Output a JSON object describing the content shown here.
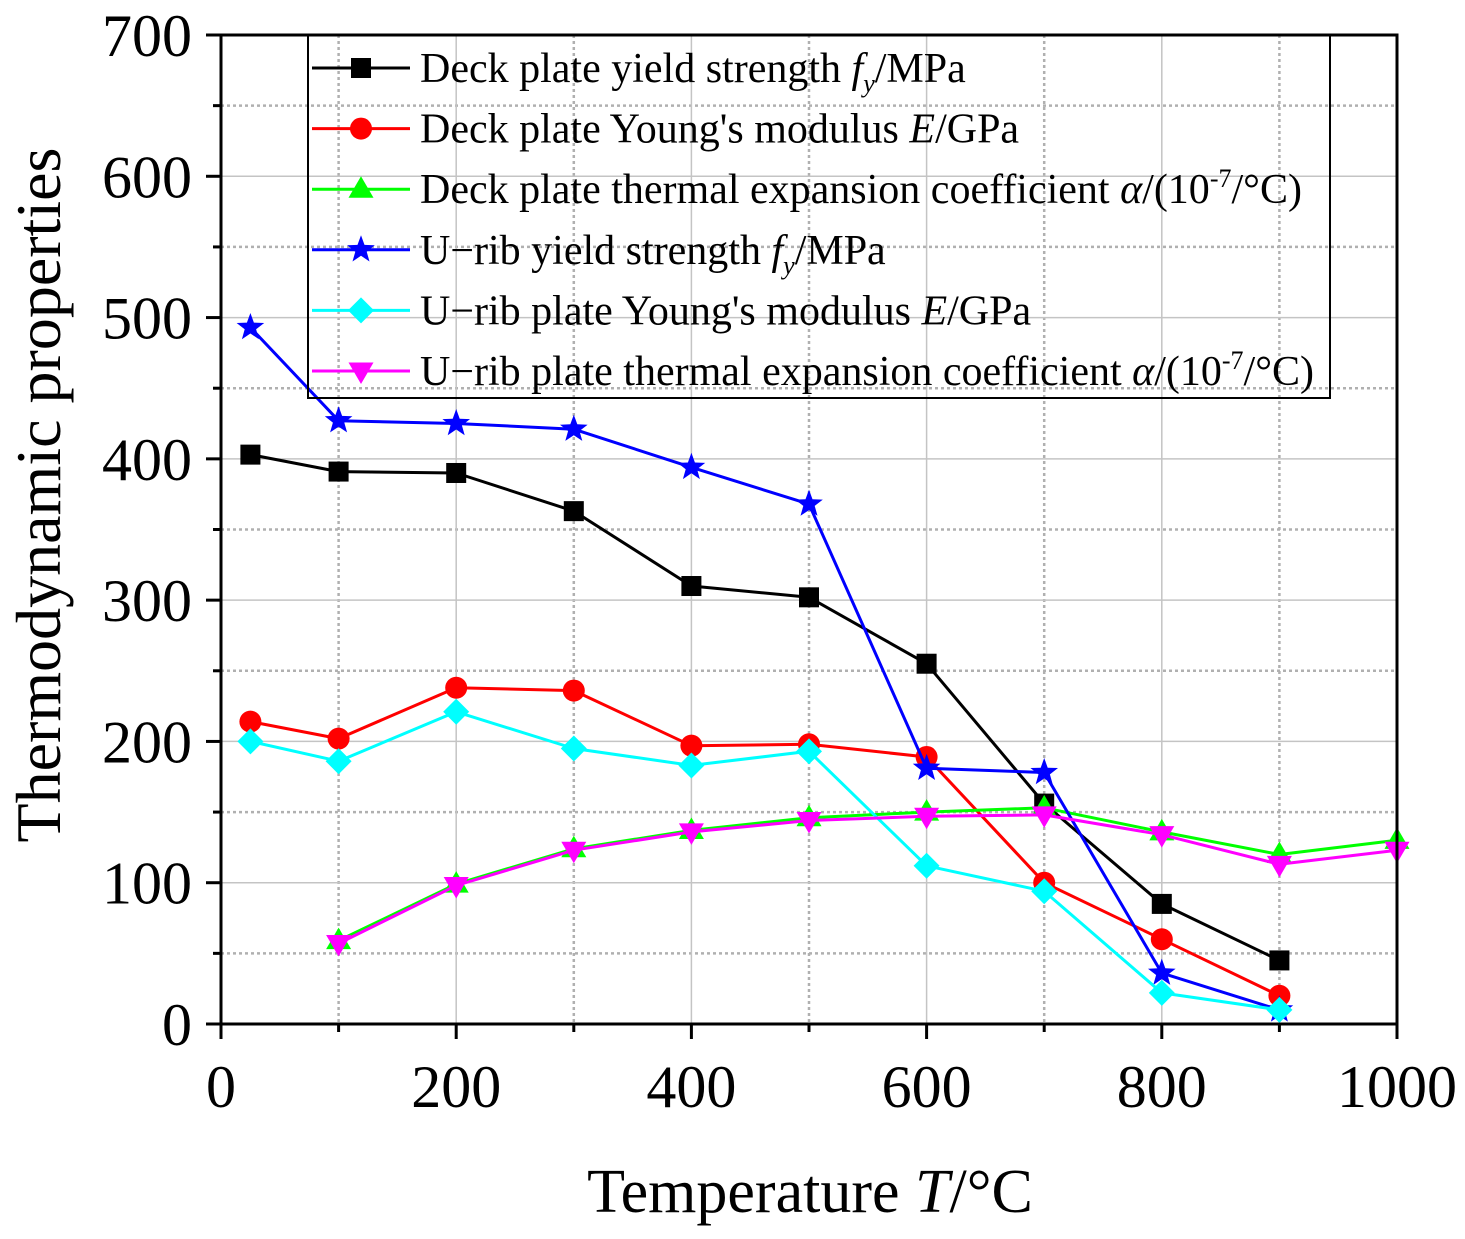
{
  "chart_data": {
    "type": "line",
    "xlabel": [
      {
        "r": "Temperature "
      },
      {
        "i": "T"
      },
      {
        "r": "/°C"
      }
    ],
    "ylabel": "Thermodynamic properties",
    "xlim": [
      0,
      1000
    ],
    "ylim": [
      0,
      700
    ],
    "xticks": [
      0,
      200,
      400,
      600,
      800,
      1000
    ],
    "x_minor_ticks": [
      100,
      300,
      500,
      700,
      900
    ],
    "yticks": [
      0,
      100,
      200,
      300,
      400,
      500,
      600,
      700
    ],
    "y_minor_ticks": [
      50,
      150,
      250,
      350,
      450,
      550,
      650
    ],
    "grid": true,
    "legend_position": "top",
    "series": [
      {
        "label": [
          {
            "r": "Deck plate yield strength "
          },
          {
            "i": "f"
          },
          {
            "isub": "y"
          },
          {
            "r": "/MPa"
          }
        ],
        "color": "#000000",
        "marker": "square",
        "x": [
          25,
          100,
          200,
          300,
          400,
          500,
          600,
          700,
          800,
          900
        ],
        "y": [
          403,
          391,
          390,
          363,
          310,
          302,
          255,
          156,
          85,
          45
        ]
      },
      {
        "label": [
          {
            "r": "Deck plate Young's modulus "
          },
          {
            "i": "E"
          },
          {
            "r": "/GPa"
          }
        ],
        "color": "#FF0000",
        "marker": "circle",
        "x": [
          25,
          100,
          200,
          300,
          400,
          500,
          600,
          700,
          800,
          900
        ],
        "y": [
          214,
          202,
          238,
          236,
          197,
          198,
          189,
          100,
          60,
          20
        ]
      },
      {
        "label": [
          {
            "r": "Deck plate thermal expansion coefficient "
          },
          {
            "i": "α"
          },
          {
            "r": "/(10"
          },
          {
            "sup": "-7"
          },
          {
            "r": "/°C)"
          }
        ],
        "color": "#00FF00",
        "marker": "triangle-up",
        "x": [
          100,
          200,
          300,
          400,
          500,
          600,
          700,
          800,
          900,
          1000
        ],
        "y": [
          59,
          99,
          124,
          137,
          146,
          150,
          153,
          136,
          120,
          130
        ]
      },
      {
        "label": [
          {
            "r": "U−rib yield strength "
          },
          {
            "i": "f"
          },
          {
            "isub": "y"
          },
          {
            "r": "/MPa"
          }
        ],
        "color": "#0000FF",
        "marker": "star",
        "x": [
          25,
          100,
          200,
          300,
          400,
          500,
          600,
          700,
          800,
          900
        ],
        "y": [
          493,
          427,
          425,
          421,
          394,
          368,
          181,
          178,
          36,
          10
        ]
      },
      {
        "label": [
          {
            "r": "U−rib plate Young's modulus "
          },
          {
            "i": "E"
          },
          {
            "r": "/GPa"
          }
        ],
        "color": "#00FFFF",
        "marker": "diamond",
        "x": [
          25,
          100,
          200,
          300,
          400,
          500,
          600,
          700,
          800,
          900
        ],
        "y": [
          200,
          186,
          221,
          195,
          183,
          193,
          112,
          94,
          22,
          10
        ]
      },
      {
        "label": [
          {
            "r": "U−rib plate thermal expansion coefficient "
          },
          {
            "i": "α"
          },
          {
            "r": "/(10"
          },
          {
            "sup": "-7"
          },
          {
            "r": "/°C)"
          }
        ],
        "color": "#FF00FF",
        "marker": "triangle-down",
        "x": [
          100,
          200,
          300,
          400,
          500,
          600,
          700,
          800,
          900,
          1000
        ],
        "y": [
          57,
          98,
          123,
          136,
          144,
          147,
          148,
          134,
          113,
          123
        ]
      }
    ]
  }
}
